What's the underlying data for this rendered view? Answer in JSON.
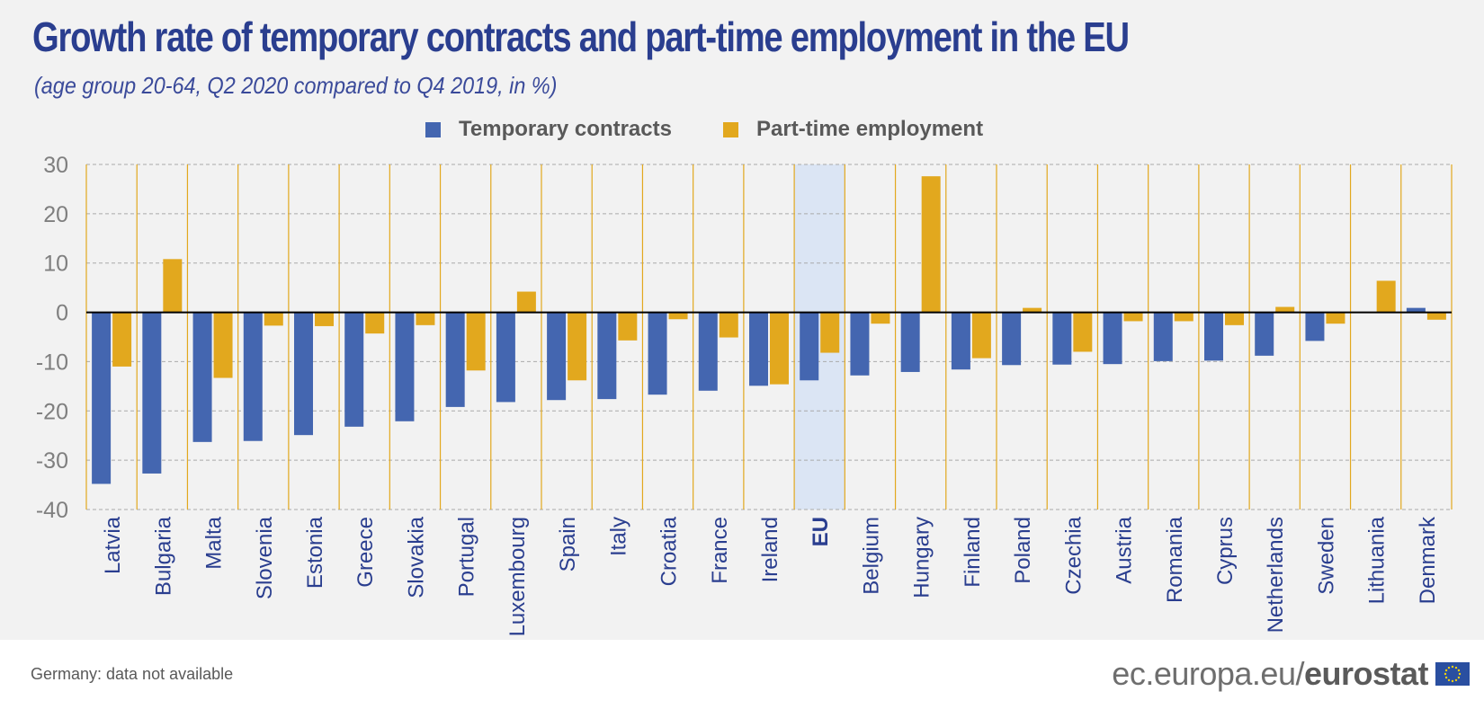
{
  "title": "Growth rate of temporary contracts and part-time employment in the EU",
  "subtitle": "(age group 20-64, Q2 2020 compared to Q4 2019, in %)",
  "footer": {
    "note": "Germany: data not available",
    "brand_url": "ec.europa.eu/",
    "brand_name": "eurostat"
  },
  "colors": {
    "temporary": "#4466b0",
    "parttime": "#e2a81e",
    "highlight": "#dbe5f4",
    "separator": "#e2a81e",
    "grid": "#aaaaaa",
    "axis_text": "#7f7f7f",
    "category_text": "#2a3e8f"
  },
  "chart_data": {
    "type": "bar",
    "title": "Growth rate of temporary contracts and part-time employment in the EU",
    "subtitle": "(age group 20-64, Q2 2020 compared to Q4 2019, in %)",
    "xlabel": "",
    "ylabel": "",
    "ylim": [
      -40,
      30
    ],
    "yticks": [
      "30",
      "20",
      "10",
      "0",
      "-10",
      "-20",
      "-30",
      "-40"
    ],
    "grid": true,
    "legend_position": "top",
    "highlight_category": "EU",
    "categories": [
      "Latvia",
      "Bulgaria",
      "Malta",
      "Slovenia",
      "Estonia",
      "Greece",
      "Slovakia",
      "Portugal",
      "Luxembourg",
      "Spain",
      "Italy",
      "Croatia",
      "France",
      "Ireland",
      "EU",
      "Belgium",
      "Hungary",
      "Finland",
      "Poland",
      "Czechia",
      "Austria",
      "Romania",
      "Cyprus",
      "Netherlands",
      "Sweden",
      "Lithuania",
      "Denmark"
    ],
    "series": [
      {
        "name": "Temporary contracts",
        "values": [
          -34.8,
          -32.7,
          -26.3,
          -26.1,
          -24.9,
          -23.2,
          -22.1,
          -19.2,
          -18.2,
          -17.8,
          -17.6,
          -16.7,
          -15.9,
          -14.9,
          -13.8,
          -12.8,
          -12.1,
          -11.6,
          -10.7,
          -10.6,
          -10.5,
          -9.9,
          -9.8,
          -8.8,
          -5.8,
          0.0,
          0.9
        ]
      },
      {
        "name": "Part-time employment",
        "values": [
          -11.0,
          10.8,
          -13.3,
          -2.7,
          -2.8,
          -4.3,
          -2.6,
          -11.8,
          4.2,
          -13.8,
          -5.7,
          -1.4,
          -5.1,
          -14.6,
          -8.2,
          -2.3,
          27.6,
          -9.3,
          0.9,
          -8.0,
          -1.8,
          -1.8,
          -2.6,
          1.1,
          -2.3,
          6.4,
          -1.5
        ]
      }
    ]
  }
}
